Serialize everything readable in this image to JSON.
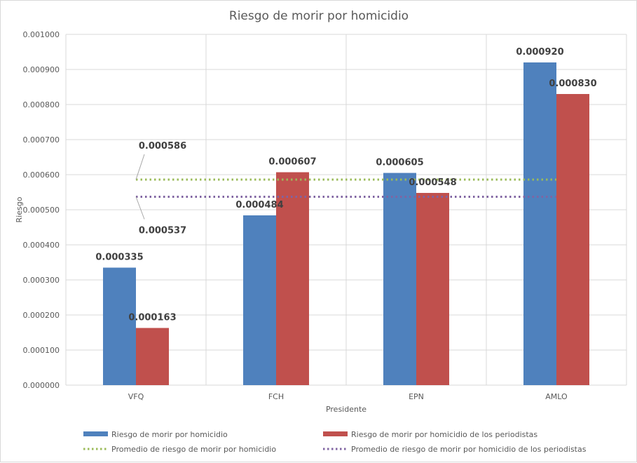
{
  "chart_data": {
    "type": "bar",
    "title": "Riesgo de morir por homicidio",
    "xlabel": "Presidente",
    "ylabel": "Riesgo",
    "ylim": [
      0,
      0.001
    ],
    "y_ticks": [
      "0.000000",
      "0.000100",
      "0.000200",
      "0.000300",
      "0.000400",
      "0.000500",
      "0.000600",
      "0.000700",
      "0.000800",
      "0.000900",
      "0.001000"
    ],
    "categories": [
      "VFQ",
      "FCH",
      "EPN",
      "AMLO"
    ],
    "series": [
      {
        "name": "Riesgo de morir por homicidio",
        "color": "#4F81BD",
        "values": [
          0.000335,
          0.000484,
          0.000605,
          0.00092
        ],
        "labels": [
          "0.000335",
          "0.000484",
          "0.000605",
          "0.000920"
        ]
      },
      {
        "name": "Riesgo de morir por homicidio de los periodistas",
        "color": "#C0504D",
        "values": [
          0.000163,
          0.000607,
          0.000548,
          0.00083
        ],
        "labels": [
          "0.000163",
          "0.000607",
          "0.000548",
          "0.000830"
        ]
      }
    ],
    "reference_lines": [
      {
        "name": "Promedio de riesgo de morir por homicidio",
        "color": "#9BBB59",
        "value": 0.000586,
        "label": "0.000586"
      },
      {
        "name": "Promedio de riesgo de morir por homicidio de los periodistas",
        "color": "#8064A2",
        "value": 0.000537,
        "label": "0.000537"
      }
    ],
    "legend": [
      {
        "text": "Riesgo de morir por homicidio",
        "kind": "bar",
        "color": "#4F81BD"
      },
      {
        "text": "Riesgo de morir por homicidio de los periodistas",
        "kind": "bar",
        "color": "#C0504D"
      },
      {
        "text": "Promedio de riesgo de morir por homicidio",
        "kind": "dotted",
        "color": "#9BBB59"
      },
      {
        "text": "Promedio de riesgo de morir por homicidio de los periodistas",
        "kind": "dotted",
        "color": "#8064A2"
      }
    ],
    "grid": true,
    "legend_position": "bottom"
  }
}
